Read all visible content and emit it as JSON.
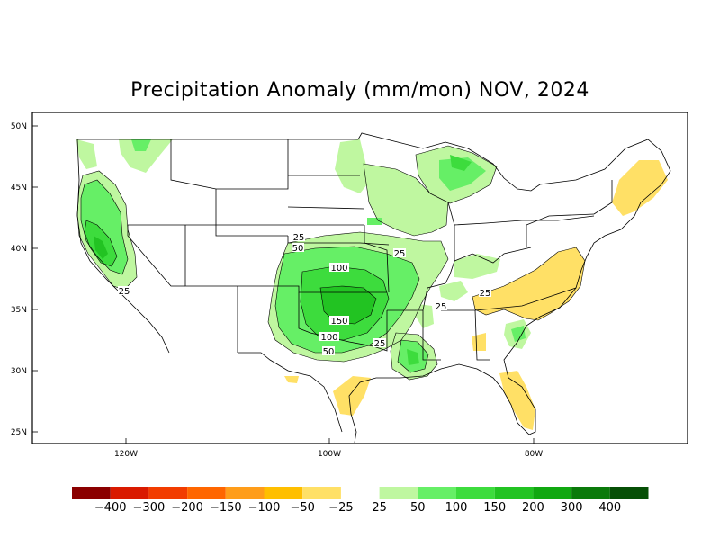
{
  "title": "Precipitation Anomaly (mm/mon) NOV, 2024",
  "axes": {
    "lat_labels": [
      "50N",
      "45N",
      "40N",
      "35N",
      "30N",
      "25N"
    ],
    "lon_labels": [
      "120W",
      "100W",
      "80W"
    ]
  },
  "contour_labels": [
    "25",
    "50",
    "100",
    "150",
    "100",
    "50",
    "25",
    "25",
    "25",
    "25",
    "25"
  ],
  "legend": {
    "negative_colors": [
      "#8b0000",
      "#d91a00",
      "#f23c00",
      "#ff6600",
      "#ff9d1a",
      "#ffbf00",
      "#ffe066"
    ],
    "positive_colors": [
      "#bff7a0",
      "#66ef66",
      "#3ddc3d",
      "#22c322",
      "#10a810",
      "#0a7a0a",
      "#064f06"
    ],
    "labels": [
      "-400",
      "-300",
      "-200",
      "-150",
      "-100",
      "-50",
      "-25",
      "25",
      "50",
      "100",
      "150",
      "200",
      "300",
      "400"
    ]
  }
}
